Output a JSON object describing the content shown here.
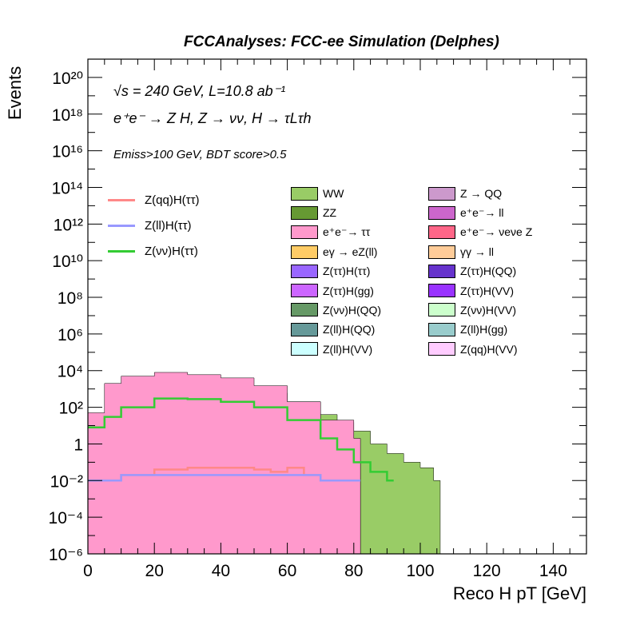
{
  "header": "FCCAnalyses: FCC-ee Simulation (Delphes)",
  "annotations": {
    "energy": "√s = 240 GeV, L=10.8 ab⁻¹",
    "process": "e⁺e⁻ → Z H, Z → νν, H → τLτh",
    "cuts": "Emiss>100 GeV, BDT score>0.5"
  },
  "chart_data": {
    "type": "area",
    "title": "",
    "xlabel": "Reco H pT [GeV]",
    "ylabel": "Events",
    "xlim": [
      0,
      150
    ],
    "ylim": [
      1e-06,
      1e+21
    ],
    "yscale": "log",
    "grid": false,
    "legend_position": "top-right",
    "x_ticks": [
      "0",
      "20",
      "40",
      "60",
      "80",
      "100",
      "120",
      "140"
    ],
    "y_ticks": [
      "10⁻⁶",
      "10⁻⁴",
      "10⁻²",
      "1",
      "10²",
      "10⁴",
      "10⁶",
      "10⁸",
      "10¹⁰",
      "10¹²",
      "10¹⁴",
      "10¹⁶",
      "10¹⁸",
      "10²⁰"
    ],
    "colors": {
      "WW": "#99cc66",
      "ZZ": "#669933",
      "ee_tautau": "#ff99cc",
      "ee_ll": "#cc66cc",
      "Z_QQ": "#cc99cc",
      "ee_nunuZ": "#ff6688",
      "egamma": "#ffcc66",
      "gammagamma": "#ffcc99",
      "ZtautauHVV": "#9933ff",
      "ZtautauHtautau": "#9966ff",
      "ZtautauHgg": "#cc66ff",
      "ZtautauHQQ": "#6633cc",
      "ZnunuHQQ": "#669966",
      "ZnunuHVV": "#ccffcc",
      "ZllHQQ": "#669999",
      "ZllHgg": "#99cccc",
      "ZllHVV": "#ccffff",
      "ZqqHVV": "#ffccff",
      "sig_qq": "#ff8888",
      "sig_ll": "#9999ff",
      "sig_nunu": "#33cc33"
    },
    "background_stack": [
      {
        "name": "WW",
        "x": [
          0,
          5,
          10,
          20,
          30,
          40,
          50,
          60,
          70,
          75,
          80,
          85,
          90,
          95,
          100,
          104
        ],
        "y": [
          0.5,
          60,
          300,
          800,
          1000,
          900,
          600,
          200,
          40,
          15,
          5,
          1,
          0.3,
          0.1,
          0.05,
          0.01
        ]
      },
      {
        "name": "ZZ",
        "x": [
          0,
          5,
          10,
          20,
          30,
          40,
          50,
          60,
          70,
          80
        ],
        "y": [
          1,
          20,
          80,
          200,
          220,
          150,
          50,
          8,
          1,
          0.1
        ]
      },
      {
        "name": "e⁺e⁻→ ττ",
        "x": [
          0,
          5,
          10,
          20,
          30,
          40,
          50,
          60,
          70,
          80
        ],
        "y": [
          50,
          2000,
          5000,
          8000,
          6000,
          4000,
          1500,
          200,
          20,
          2
        ]
      }
    ],
    "series": [
      {
        "name": "Z(qq)H(ττ)",
        "x": [
          0,
          10,
          20,
          30,
          40,
          50,
          55,
          60,
          65,
          70
        ],
        "y": [
          0.01,
          0.02,
          0.04,
          0.05,
          0.05,
          0.04,
          0.03,
          0.05,
          0.02,
          0.01
        ]
      },
      {
        "name": "Z(ll)H(ττ)",
        "x": [
          0,
          10,
          20,
          30,
          40,
          50,
          60,
          70,
          75,
          80
        ],
        "y": [
          0.01,
          0.02,
          0.02,
          0.02,
          0.02,
          0.02,
          0.02,
          0.01,
          0.01,
          0.01
        ]
      },
      {
        "name": "Z(νν)H(ττ)",
        "x": [
          0,
          5,
          10,
          20,
          30,
          40,
          50,
          60,
          70,
          75,
          80,
          85,
          90
        ],
        "y": [
          8,
          30,
          100,
          300,
          280,
          200,
          100,
          20,
          2,
          0.5,
          0.1,
          0.03,
          0.01
        ]
      }
    ],
    "legend": [
      "WW",
      "ZZ",
      "e⁺e⁻→ ττ",
      "eγ → eZ(ll)",
      "Z(ττ)H(ττ)",
      "Z(ττ)H(gg)",
      "Z(νν)H(QQ)",
      "Z(ll)H(QQ)",
      "Z(ll)H(VV)",
      "Z → QQ",
      "e⁺e⁻→ ll",
      "e⁺e⁻→ νeνe Z",
      "γγ → ll",
      "Z(ττ)H(QQ)",
      "Z(ττ)H(VV)",
      "Z(νν)H(VV)",
      "Z(ll)H(gg)",
      "Z(qq)H(VV)"
    ],
    "line_legend": [
      "Z(qq)H(ττ)",
      "Z(ll)H(ττ)",
      "Z(νν)H(ττ)"
    ]
  }
}
